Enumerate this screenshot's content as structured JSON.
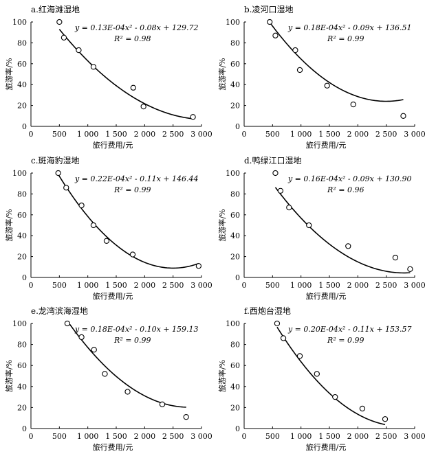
{
  "chart_data": [
    {
      "type": "scatter",
      "title": "a.红海滩湿地",
      "xlabel": "旅行费用/元",
      "ylabel": "旅游率/%",
      "xlim": [
        0,
        3000
      ],
      "ylim": [
        0,
        100
      ],
      "xticks": [
        "0",
        "500",
        "1 000",
        "1 500",
        "2 000",
        "2 500",
        "3 000"
      ],
      "yticks": [
        "0",
        "20",
        "40",
        "60",
        "80",
        "100"
      ],
      "equation": "y = 0.13E-04x² - 0.08x + 129.72",
      "r2": "R² = 0.98",
      "coef": [
        1.3e-05,
        -0.08,
        129.72
      ],
      "fit_range": [
        500,
        2850
      ],
      "points": [
        [
          500,
          100
        ],
        [
          580,
          85
        ],
        [
          840,
          73
        ],
        [
          1100,
          57
        ],
        [
          1800,
          37
        ],
        [
          1980,
          19
        ],
        [
          2850,
          9
        ]
      ]
    },
    {
      "type": "scatter",
      "title": "b.凌河口湿地",
      "xlabel": "旅行费用/元",
      "ylabel": "旅游率/%",
      "xlim": [
        0,
        3000
      ],
      "ylim": [
        0,
        100
      ],
      "xticks": [
        "0",
        "500",
        "1 000",
        "1 500",
        "2 000",
        "2 500",
        "3 000"
      ],
      "yticks": [
        "0",
        "20",
        "40",
        "60",
        "80",
        "100"
      ],
      "equation": "y = 0.18E-04x² - 0.09x + 136.51",
      "r2": "R² = 0.99",
      "coef": [
        1.8e-05,
        -0.09,
        136.51
      ],
      "fit_range": [
        450,
        2800
      ],
      "points": [
        [
          450,
          100
        ],
        [
          550,
          87
        ],
        [
          900,
          73
        ],
        [
          980,
          54
        ],
        [
          1460,
          39
        ],
        [
          1920,
          21
        ],
        [
          2800,
          10
        ]
      ]
    },
    {
      "type": "scatter",
      "title": "c.斑海豹湿地",
      "xlabel": "旅行费用/元",
      "ylabel": "旅游率/%",
      "xlim": [
        0,
        3000
      ],
      "ylim": [
        0,
        100
      ],
      "xticks": [
        "0",
        "500",
        "1 000",
        "1 500",
        "2 000",
        "2 500",
        "3 000"
      ],
      "yticks": [
        "0",
        "20",
        "40",
        "60",
        "80",
        "100"
      ],
      "equation": "y = 0.22E-04x² - 0.11x + 146.44",
      "r2": "R² = 0.99",
      "coef": [
        2.2e-05,
        -0.11,
        146.44
      ],
      "fit_range": [
        480,
        2950
      ],
      "points": [
        [
          480,
          100
        ],
        [
          620,
          86
        ],
        [
          890,
          69
        ],
        [
          1100,
          50
        ],
        [
          1330,
          35
        ],
        [
          1790,
          22
        ],
        [
          2950,
          11
        ]
      ]
    },
    {
      "type": "scatter",
      "title": "d.鸭绿江口湿地",
      "xlabel": "旅行费用/元",
      "ylabel": "旅游率/%",
      "xlim": [
        0,
        3000
      ],
      "ylim": [
        0,
        100
      ],
      "xticks": [
        "0",
        "500",
        "1 000",
        "1 500",
        "2 000",
        "2 500",
        "3 000"
      ],
      "yticks": [
        "0",
        "20",
        "40",
        "60",
        "80",
        "100"
      ],
      "equation": "y = 0.16E-04x² - 0.09x + 130.90",
      "r2": "R² = 0.96",
      "coef": [
        1.6e-05,
        -0.09,
        130.9
      ],
      "fit_range": [
        550,
        2920
      ],
      "points": [
        [
          550,
          100
        ],
        [
          640,
          83
        ],
        [
          790,
          67
        ],
        [
          1140,
          50
        ],
        [
          1830,
          30
        ],
        [
          2660,
          19
        ],
        [
          2920,
          8
        ]
      ]
    },
    {
      "type": "scatter",
      "title": "e.龙湾滨海湿地",
      "xlabel": "旅行费用/元",
      "ylabel": "旅游率/%",
      "xlim": [
        0,
        3000
      ],
      "ylim": [
        0,
        100
      ],
      "xticks": [
        "0",
        "500",
        "1 000",
        "1 500",
        "2 000",
        "2 500",
        "3 000"
      ],
      "yticks": [
        "0",
        "20",
        "40",
        "60",
        "80",
        "100"
      ],
      "equation": "y = 0.18E-04x² - 0.10x + 159.13",
      "r2": "R² = 0.99",
      "coef": [
        1.8e-05,
        -0.1,
        159.13
      ],
      "fit_range": [
        640,
        2730
      ],
      "points": [
        [
          640,
          100
        ],
        [
          890,
          87
        ],
        [
          1110,
          75
        ],
        [
          1300,
          52
        ],
        [
          1700,
          35
        ],
        [
          2310,
          23
        ],
        [
          2730,
          11
        ]
      ]
    },
    {
      "type": "scatter",
      "title": "f.西炮台湿地",
      "xlabel": "旅行费用/元",
      "ylabel": "旅游率/%",
      "xlim": [
        0,
        3000
      ],
      "ylim": [
        0,
        100
      ],
      "xticks": [
        "0",
        "500",
        "1 000",
        "1 500",
        "2 000",
        "2 500",
        "3 000"
      ],
      "yticks": [
        "0",
        "20",
        "40",
        "60",
        "80",
        "100"
      ],
      "equation": "y = 0.20E-04x² - 0.11x + 153.57",
      "r2": "R² = 0.99",
      "coef": [
        2e-05,
        -0.11,
        153.57
      ],
      "fit_range": [
        580,
        2480
      ],
      "points": [
        [
          580,
          100
        ],
        [
          690,
          86
        ],
        [
          980,
          69
        ],
        [
          1280,
          52
        ],
        [
          1600,
          30
        ],
        [
          2080,
          19
        ],
        [
          2480,
          9
        ]
      ]
    }
  ]
}
